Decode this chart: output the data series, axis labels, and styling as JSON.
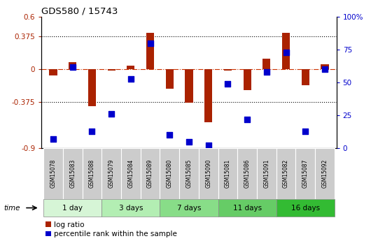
{
  "title": "GDS580 / 15743",
  "samples": [
    "GSM15078",
    "GSM15083",
    "GSM15088",
    "GSM15079",
    "GSM15084",
    "GSM15089",
    "GSM15080",
    "GSM15085",
    "GSM15090",
    "GSM15081",
    "GSM15086",
    "GSM15091",
    "GSM15082",
    "GSM15087",
    "GSM15092"
  ],
  "log_ratio": [
    -0.07,
    0.08,
    -0.42,
    -0.01,
    0.04,
    0.42,
    -0.22,
    -0.38,
    -0.6,
    -0.01,
    -0.24,
    0.12,
    0.42,
    -0.18,
    0.06
  ],
  "percentile_rank": [
    7,
    62,
    13,
    26,
    53,
    80,
    10,
    5,
    2,
    49,
    22,
    58,
    73,
    13,
    60
  ],
  "ylim_left": [
    -0.9,
    0.6
  ],
  "ylim_right": [
    0,
    100
  ],
  "y_ticks_left": [
    -0.9,
    -0.375,
    0,
    0.375,
    0.6
  ],
  "y_tick_labels_left": [
    "-0.9",
    "-0.375",
    "0",
    "0.375",
    "0.6"
  ],
  "y_ticks_right": [
    0,
    25,
    50,
    75,
    100
  ],
  "y_tick_labels_right": [
    "0",
    "25",
    "50",
    "75",
    "100%"
  ],
  "hlines": [
    0.375,
    -0.375
  ],
  "groups": [
    {
      "label": "1 day",
      "start": 0,
      "end": 3,
      "color": "#d6f5d6"
    },
    {
      "label": "3 days",
      "start": 3,
      "end": 6,
      "color": "#b3eeb3"
    },
    {
      "label": "7 days",
      "start": 6,
      "end": 9,
      "color": "#88dd88"
    },
    {
      "label": "11 days",
      "start": 9,
      "end": 12,
      "color": "#66cc66"
    },
    {
      "label": "16 days",
      "start": 12,
      "end": 15,
      "color": "#33bb33"
    }
  ],
  "bar_color": "#aa2200",
  "dot_color": "#0000cc",
  "zero_line_color": "#cc3300",
  "grid_color": "#000000",
  "bg_color": "#ffffff",
  "plot_bg_color": "#ffffff",
  "sample_box_color": "#cccccc",
  "legend_bar_label": "log ratio",
  "legend_dot_label": "percentile rank within the sample",
  "time_label": "time",
  "bar_width": 0.4,
  "dot_size": 28
}
